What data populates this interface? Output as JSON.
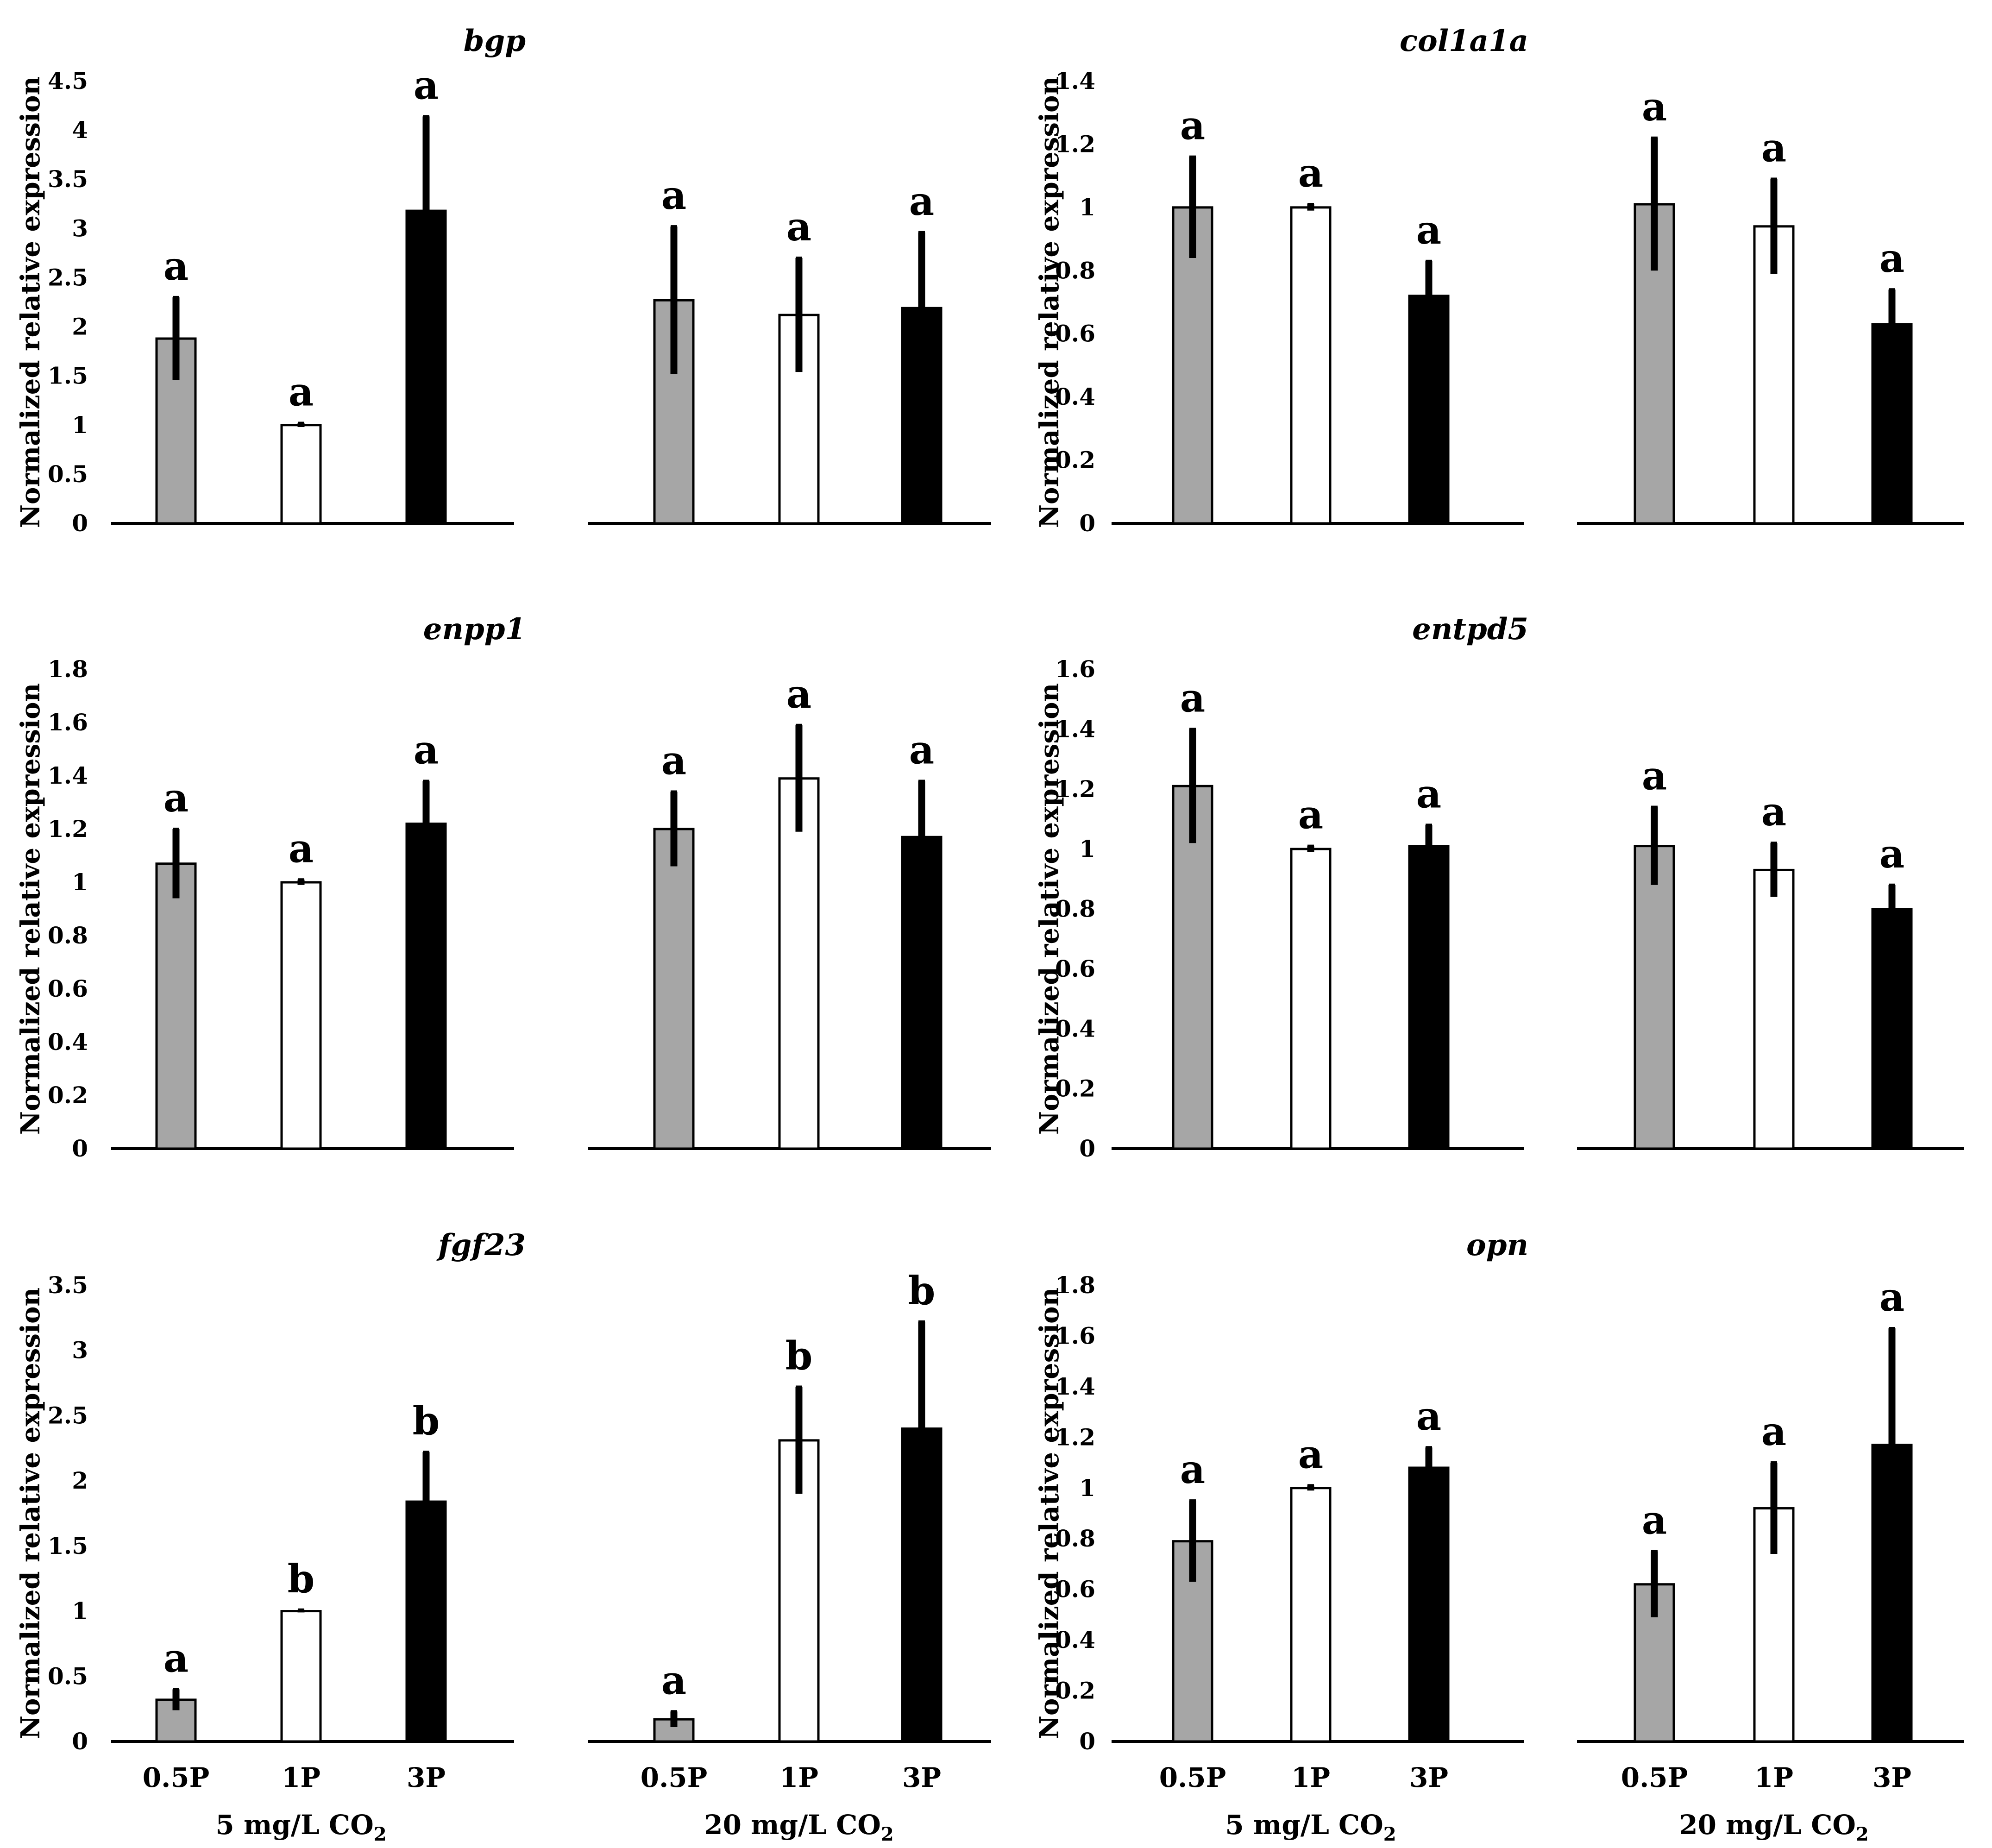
{
  "ylabel": "Normalized relative expression",
  "categories": [
    "0.5P",
    "1P",
    "3P"
  ],
  "bar_colors": [
    "#a6a6a6",
    "#ffffff",
    "#000000"
  ],
  "group_labels": [
    {
      "text": "5 mg/L CO",
      "sub": "2"
    },
    {
      "text": "20 mg/L CO",
      "sub": "2"
    }
  ],
  "chart_data": [
    {
      "type": "bar",
      "title": "bgp",
      "ylim": [
        0,
        4.5
      ],
      "yticks": [
        0,
        0.5,
        1,
        1.5,
        2,
        2.5,
        3,
        3.5,
        4,
        4.5
      ],
      "tick_labels": [
        "0",
        "0.5",
        "1",
        "1.5",
        "2",
        "2.5",
        "3",
        "3.5",
        "4",
        "4.5"
      ],
      "categories": [
        "0.5P",
        "1P",
        "3P"
      ],
      "series": [
        {
          "name": "5 mg/L CO2",
          "values": [
            1.88,
            1.0,
            3.18
          ],
          "errors": [
            0.42,
            0.02,
            0.96
          ],
          "letters": [
            "a",
            "a",
            "a"
          ]
        },
        {
          "name": "20 mg/L CO2",
          "values": [
            2.27,
            2.12,
            2.19
          ],
          "errors": [
            0.75,
            0.58,
            0.77
          ],
          "letters": [
            "a",
            "a",
            "a"
          ]
        }
      ]
    },
    {
      "type": "bar",
      "title": "col1a1a",
      "ylim": [
        0,
        1.4
      ],
      "yticks": [
        0,
        0.2,
        0.4,
        0.6,
        0.8,
        1,
        1.2,
        1.4
      ],
      "tick_labels": [
        "0",
        "0.2",
        "0.4",
        "0.6",
        "0.8",
        "1",
        "1.2",
        "1.4"
      ],
      "categories": [
        "0.5P",
        "1P",
        "3P"
      ],
      "series": [
        {
          "name": "5 mg/L CO2",
          "values": [
            1.0,
            1.0,
            0.72
          ],
          "errors": [
            0.16,
            0.01,
            0.11
          ],
          "letters": [
            "a",
            "a",
            "a"
          ]
        },
        {
          "name": "20 mg/L CO2",
          "values": [
            1.01,
            0.94,
            0.63
          ],
          "errors": [
            0.21,
            0.15,
            0.11
          ],
          "letters": [
            "a",
            "a",
            "a"
          ]
        }
      ]
    },
    {
      "type": "bar",
      "title": "enpp1",
      "ylim": [
        0,
        1.8
      ],
      "yticks": [
        0,
        0.2,
        0.4,
        0.6,
        0.8,
        1,
        1.2,
        1.4,
        1.6,
        1.8
      ],
      "tick_labels": [
        "0",
        "0.2",
        "0.4",
        "0.6",
        "0.8",
        "1",
        "1.2",
        "1.4",
        "1.6",
        "1.8"
      ],
      "categories": [
        "0.5P",
        "1P",
        "3P"
      ],
      "series": [
        {
          "name": "5 mg/L CO2",
          "values": [
            1.07,
            1.0,
            1.22
          ],
          "errors": [
            0.13,
            0.01,
            0.16
          ],
          "letters": [
            "a",
            "a",
            "a"
          ]
        },
        {
          "name": "20 mg/L CO2",
          "values": [
            1.2,
            1.39,
            1.17
          ],
          "errors": [
            0.14,
            0.2,
            0.21
          ],
          "letters": [
            "a",
            "a",
            "a"
          ]
        }
      ]
    },
    {
      "type": "bar",
      "title": "entpd5",
      "ylim": [
        0,
        1.6
      ],
      "yticks": [
        0,
        0.2,
        0.4,
        0.6,
        0.8,
        1,
        1.2,
        1.4,
        1.6
      ],
      "tick_labels": [
        "0",
        "0.2",
        "0.4",
        "0.6",
        "0.8",
        "1",
        "1.2",
        "1.4",
        "1.6"
      ],
      "categories": [
        "0.5P",
        "1P",
        "3P"
      ],
      "series": [
        {
          "name": "5 mg/L CO2",
          "values": [
            1.21,
            1.0,
            1.01
          ],
          "errors": [
            0.19,
            0.01,
            0.07
          ],
          "letters": [
            "a",
            "a",
            "a"
          ]
        },
        {
          "name": "20 mg/L CO2",
          "values": [
            1.01,
            0.93,
            0.8
          ],
          "errors": [
            0.13,
            0.09,
            0.08
          ],
          "letters": [
            "a",
            "a",
            "a"
          ]
        }
      ]
    },
    {
      "type": "bar",
      "title": "fgf23",
      "ylim": [
        0,
        3.5
      ],
      "yticks": [
        0,
        0.5,
        1,
        1.5,
        2,
        2.5,
        3,
        3.5
      ],
      "tick_labels": [
        "0",
        "0.5",
        "1",
        "1.5",
        "2",
        "2.5",
        "3",
        "3.5"
      ],
      "categories": [
        "0.5P",
        "1P",
        "3P"
      ],
      "series": [
        {
          "name": "5 mg/L CO2",
          "values": [
            0.32,
            1.0,
            1.84
          ],
          "errors": [
            0.08,
            0.01,
            0.38
          ],
          "letters": [
            "a",
            "b",
            "b"
          ]
        },
        {
          "name": "20 mg/L CO2",
          "values": [
            0.17,
            2.31,
            2.4
          ],
          "errors": [
            0.06,
            0.41,
            0.82
          ],
          "letters": [
            "a",
            "b",
            "b"
          ]
        }
      ]
    },
    {
      "type": "bar",
      "title": "opn",
      "ylim": [
        0,
        1.8
      ],
      "yticks": [
        0,
        0.2,
        0.4,
        0.6,
        0.8,
        1,
        1.2,
        1.4,
        1.6,
        1.8
      ],
      "tick_labels": [
        "0",
        "0.2",
        "0.4",
        "0.6",
        "0.8",
        "1",
        "1.2",
        "1.4",
        "1.6",
        "1.8"
      ],
      "categories": [
        "0.5P",
        "1P",
        "3P"
      ],
      "series": [
        {
          "name": "5 mg/L CO2",
          "values": [
            0.79,
            1.0,
            1.08
          ],
          "errors": [
            0.16,
            0.01,
            0.08
          ],
          "letters": [
            "a",
            "a",
            "a"
          ]
        },
        {
          "name": "20 mg/L CO2",
          "values": [
            0.62,
            0.92,
            1.17
          ],
          "errors": [
            0.13,
            0.18,
            0.46
          ],
          "letters": [
            "a",
            "a",
            "a"
          ]
        }
      ]
    }
  ]
}
